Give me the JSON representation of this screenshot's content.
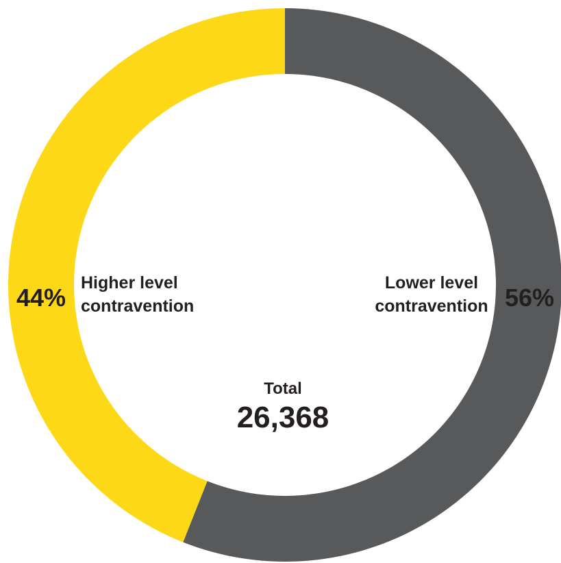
{
  "chart_data": {
    "type": "pie",
    "style": "donut",
    "slices": [
      {
        "label_line1": "Lower level",
        "label_line2": "contravention",
        "value": 56,
        "display": "56%",
        "color": "#58595b"
      },
      {
        "label_line1": "Higher level",
        "label_line2": "contravention",
        "value": 44,
        "display": "44%",
        "color": "#fcd817"
      }
    ],
    "center": {
      "label": "Total",
      "value": "26,368"
    }
  }
}
